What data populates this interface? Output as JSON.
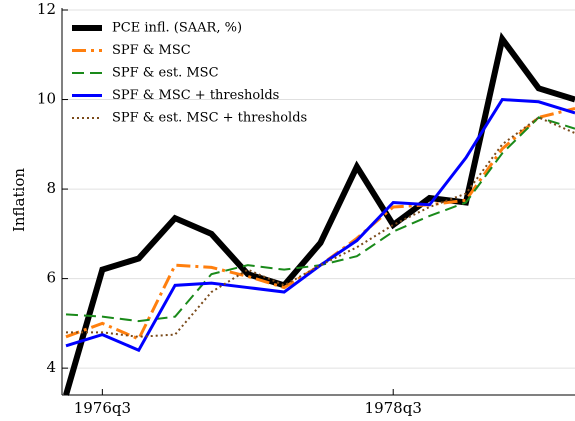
{
  "chart_data": {
    "type": "line",
    "y_label": "Inflation",
    "categories": [
      null,
      "1976q3",
      null,
      null,
      null,
      null,
      null,
      null,
      null,
      "1978q3",
      null,
      null,
      null,
      null,
      null
    ],
    "ylim": [
      3.4,
      12
    ],
    "yticks": [
      4,
      6,
      8,
      10,
      12
    ],
    "grid": true,
    "legend": "upper left",
    "series": [
      {
        "name": "PCE infl. (SAAR, %)",
        "color": "#000000",
        "style": "solid",
        "width": 6,
        "values": [
          3.4,
          6.2,
          6.45,
          7.35,
          7.0,
          6.1,
          5.85,
          6.8,
          8.5,
          7.2,
          7.8,
          7.7,
          11.35,
          10.25,
          10.0
        ]
      },
      {
        "name": "SPF & MSC",
        "color": "#ff7f0e",
        "style": "dashdot",
        "width": 3,
        "values": [
          4.7,
          5.0,
          4.65,
          6.3,
          6.25,
          6.05,
          5.8,
          6.3,
          6.9,
          7.6,
          7.65,
          7.75,
          8.9,
          9.6,
          9.8
        ]
      },
      {
        "name": "SPF & est. MSC",
        "color": "#1a8a1a",
        "style": "dashed",
        "width": 2,
        "values": [
          5.2,
          5.15,
          5.05,
          5.15,
          6.1,
          6.3,
          6.2,
          6.3,
          6.5,
          7.05,
          7.4,
          7.7,
          8.8,
          9.6,
          9.35
        ]
      },
      {
        "name": "SPF & MSC + thresholds",
        "color": "#0000ff",
        "style": "solid",
        "width": 3,
        "values": [
          4.5,
          4.75,
          4.4,
          5.85,
          5.9,
          5.8,
          5.7,
          6.3,
          6.85,
          7.7,
          7.65,
          8.7,
          10.0,
          9.95,
          9.7
        ]
      },
      {
        "name": "SPF & est. MSC + thresholds",
        "color": "#7a4a1a",
        "style": "dotted",
        "width": 2,
        "values": [
          4.8,
          4.8,
          4.7,
          4.75,
          5.7,
          6.2,
          5.85,
          6.3,
          6.7,
          7.2,
          7.6,
          7.9,
          9.0,
          9.6,
          9.25
        ]
      }
    ]
  }
}
